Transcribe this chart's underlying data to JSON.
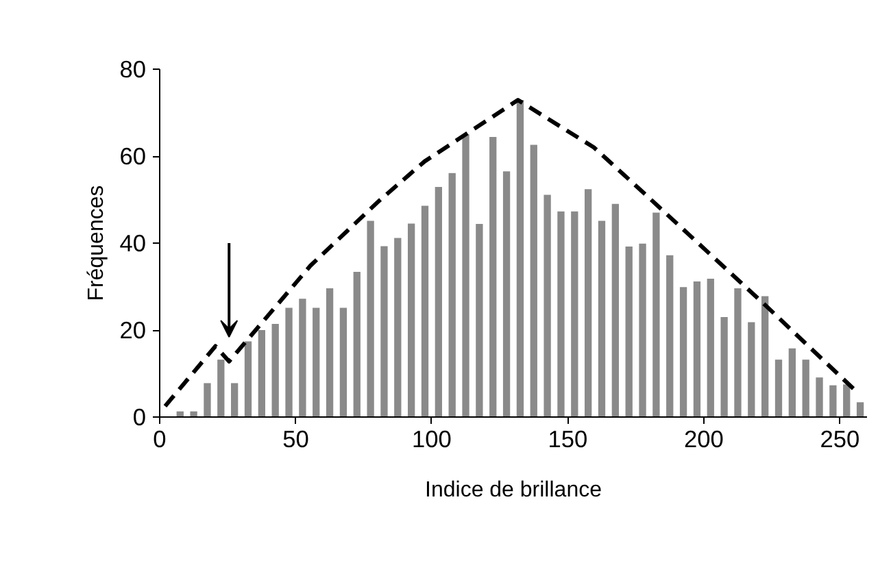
{
  "chart_data": {
    "type": "bar",
    "xlabel": "Indice de brillance",
    "ylabel": "Fréquences",
    "xlim": [
      0,
      260
    ],
    "ylim": [
      0,
      80
    ],
    "xticks": [
      0,
      50,
      100,
      150,
      200,
      250
    ],
    "yticks": [
      0,
      20,
      40,
      60,
      80
    ],
    "grid": false,
    "series": [
      {
        "color": "#8a8a8a",
        "x": [
          7.5,
          12.5,
          17.5,
          22.5,
          27.5,
          32.5,
          37.5,
          42.5,
          47.5,
          52.5,
          57.5,
          62.5,
          67.5,
          72.5,
          77.5,
          82.5,
          87.5,
          92.5,
          97.5,
          102.5,
          107.5,
          112.5,
          117.5,
          122.5,
          127.5,
          132.5,
          137.5,
          142.5,
          147.5,
          152.5,
          157.5,
          162.5,
          167.5,
          172.5,
          177.5,
          182.5,
          187.5,
          192.5,
          197.5,
          202.5,
          207.5,
          212.5,
          217.5,
          222.5,
          227.5,
          232.5,
          237.5,
          242.5,
          247.5,
          252.5,
          257.5
        ],
        "values": [
          1.3,
          1.3,
          7.8,
          13.2,
          7.8,
          17.4,
          20,
          21.4,
          25.1,
          27.2,
          25.1,
          29.6,
          25.1,
          33.4,
          45.1,
          39.3,
          41.2,
          44.5,
          48.6,
          52.9,
          56.1,
          65,
          44.4,
          64.4,
          56.5,
          72.9,
          62.6,
          51.1,
          47.3,
          47.3,
          52.4,
          45.1,
          49,
          39.2,
          39.9,
          47,
          37.2,
          29.9,
          31.2,
          31.8,
          23,
          29.6,
          21.8,
          27.8,
          13.2,
          15.8,
          13.2,
          9.1,
          7.3,
          7.5,
          3.4
        ]
      },
      {
        "type": "line",
        "color": "#000000",
        "line_style": "dashed",
        "x": [
          2,
          20.5,
          25.5,
          55.4,
          80.6,
          97.4,
          131.7,
          159.6,
          178,
          221.8,
          255.7
        ],
        "values": [
          2.5,
          16.3,
          12.8,
          34.8,
          49.7,
          58.8,
          72.9,
          62,
          51.5,
          26.2,
          6.1
        ]
      }
    ]
  }
}
